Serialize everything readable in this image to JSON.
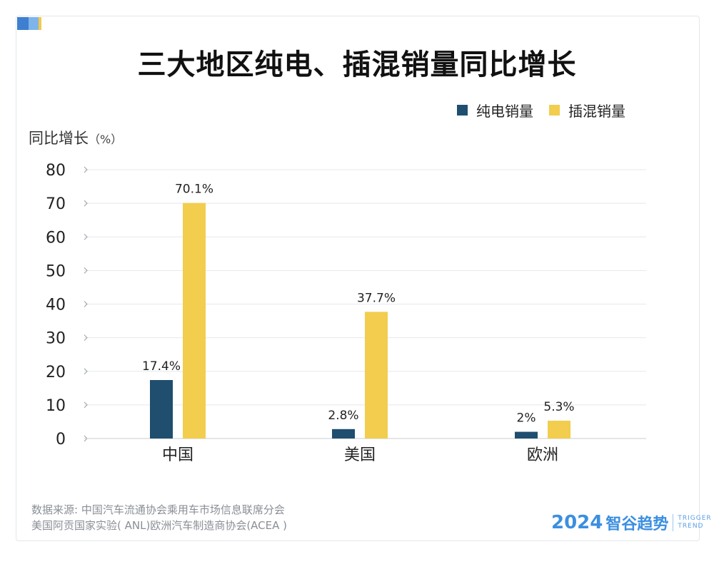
{
  "title": "三大地区纯电、插混销量同比增长",
  "legend": [
    {
      "label": "纯电销量",
      "color": "#1f4e6e"
    },
    {
      "label": "插混销量",
      "color": "#f2cd4e"
    }
  ],
  "ylabel": "同比增长",
  "ylabel_unit": "（%）",
  "source_lines": [
    "数据来源: 中国汽车流通协会乘用车市场信息联席分会",
    "美国阿贡国家实验( ANL)欧洲汽车制造商协会(ACEA )"
  ],
  "brand": {
    "year": "2024",
    "name": "智谷趋势",
    "en_line1": "TRIGGER",
    "en_line2": "TREND"
  },
  "chart_data": {
    "type": "bar",
    "categories": [
      "中国",
      "美国",
      "欧洲"
    ],
    "series": [
      {
        "name": "纯电销量",
        "color": "#1f4e6e",
        "values": [
          17.4,
          2.8,
          2
        ],
        "labels": [
          "17.4%",
          "2.8%",
          "2%"
        ]
      },
      {
        "name": "插混销量",
        "color": "#f2cd4e",
        "values": [
          70.1,
          37.7,
          5.3
        ],
        "labels": [
          "70.1%",
          "37.7%",
          "5.3%"
        ]
      }
    ],
    "ylim": [
      0,
      80
    ],
    "yticks": [
      "0",
      "10",
      "20",
      "30",
      "40",
      "50",
      "60",
      "70",
      "80"
    ],
    "grid": true,
    "legend_position": "top-right"
  }
}
